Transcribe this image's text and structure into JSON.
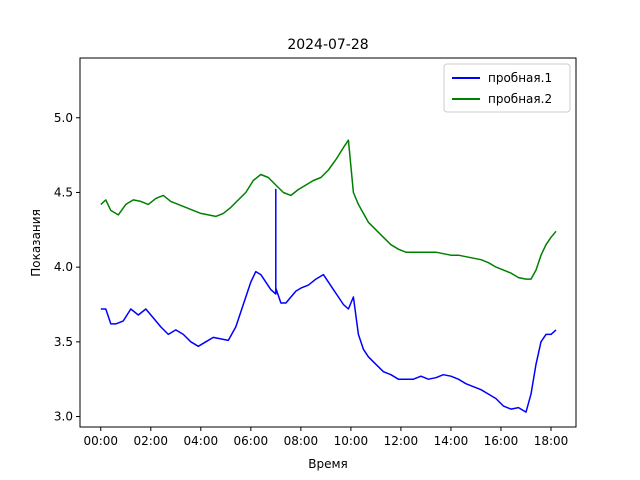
{
  "chart_data": {
    "type": "line",
    "title": "2024-07-28",
    "xlabel": "Время",
    "ylabel": "Показания",
    "x_unit": "hours",
    "xlim": [
      -0.83,
      19.0
    ],
    "ylim": [
      2.93,
      5.4
    ],
    "x_ticks": [
      0,
      2,
      4,
      6,
      8,
      10,
      12,
      14,
      16,
      18
    ],
    "x_tick_labels": [
      "00:00",
      "02:00",
      "04:00",
      "06:00",
      "08:00",
      "10:00",
      "12:00",
      "14:00",
      "16:00",
      "18:00"
    ],
    "y_ticks": [
      3.0,
      3.5,
      4.0,
      4.5,
      5.0
    ],
    "y_tick_labels": [
      "3.0",
      "3.5",
      "4.0",
      "4.5",
      "5.0"
    ],
    "legend_position": "top-right",
    "grid": false,
    "series": [
      {
        "name": "пробная.1",
        "color": "#0000ff",
        "x": [
          0,
          0.2,
          0.4,
          0.6,
          0.9,
          1.2,
          1.5,
          1.8,
          2.1,
          2.4,
          2.7,
          3.0,
          3.3,
          3.6,
          3.9,
          4.2,
          4.5,
          4.8,
          5.1,
          5.4,
          5.7,
          6.0,
          6.2,
          6.4,
          6.6,
          6.8,
          7.0,
          7.0,
          7.0,
          7.2,
          7.4,
          7.6,
          7.8,
          8.0,
          8.3,
          8.6,
          8.9,
          9.1,
          9.3,
          9.5,
          9.7,
          9.9,
          10.1,
          10.3,
          10.5,
          10.7,
          11.0,
          11.3,
          11.6,
          11.9,
          12.2,
          12.5,
          12.8,
          13.1,
          13.4,
          13.7,
          14.0,
          14.3,
          14.6,
          14.9,
          15.2,
          15.5,
          15.8,
          16.1,
          16.4,
          16.7,
          17.0,
          17.2,
          17.4,
          17.6,
          17.8,
          18.0,
          18.2
        ],
        "y": [
          3.72,
          3.72,
          3.62,
          3.62,
          3.64,
          3.72,
          3.68,
          3.72,
          3.66,
          3.6,
          3.55,
          3.58,
          3.55,
          3.5,
          3.47,
          3.5,
          3.53,
          3.52,
          3.51,
          3.6,
          3.75,
          3.9,
          3.97,
          3.95,
          3.9,
          3.85,
          3.82,
          4.52,
          3.86,
          3.76,
          3.76,
          3.8,
          3.84,
          3.86,
          3.88,
          3.92,
          3.95,
          3.9,
          3.85,
          3.8,
          3.75,
          3.72,
          3.8,
          3.55,
          3.45,
          3.4,
          3.35,
          3.3,
          3.28,
          3.25,
          3.25,
          3.25,
          3.27,
          3.25,
          3.26,
          3.28,
          3.27,
          3.25,
          3.22,
          3.2,
          3.18,
          3.15,
          3.12,
          3.07,
          3.05,
          3.06,
          3.03,
          3.15,
          3.35,
          3.5,
          3.55,
          3.55,
          3.58
        ]
      },
      {
        "name": "пробная.2",
        "color": "#008000",
        "x": [
          0,
          0.2,
          0.4,
          0.7,
          1.0,
          1.3,
          1.6,
          1.9,
          2.2,
          2.5,
          2.8,
          3.1,
          3.4,
          3.7,
          4.0,
          4.3,
          4.6,
          4.9,
          5.2,
          5.5,
          5.8,
          6.1,
          6.4,
          6.7,
          7.0,
          7.3,
          7.6,
          7.9,
          8.2,
          8.5,
          8.8,
          9.1,
          9.4,
          9.7,
          9.9,
          10.1,
          10.3,
          10.5,
          10.7,
          11.0,
          11.3,
          11.6,
          11.9,
          12.2,
          12.5,
          12.8,
          13.1,
          13.4,
          13.7,
          14.0,
          14.3,
          14.6,
          14.9,
          15.2,
          15.5,
          15.8,
          16.1,
          16.4,
          16.7,
          17.0,
          17.2,
          17.4,
          17.6,
          17.8,
          18.0,
          18.2
        ],
        "y": [
          4.42,
          4.45,
          4.38,
          4.35,
          4.42,
          4.45,
          4.44,
          4.42,
          4.46,
          4.48,
          4.44,
          4.42,
          4.4,
          4.38,
          4.36,
          4.35,
          4.34,
          4.36,
          4.4,
          4.45,
          4.5,
          4.58,
          4.62,
          4.6,
          4.55,
          4.5,
          4.48,
          4.52,
          4.55,
          4.58,
          4.6,
          4.65,
          4.72,
          4.8,
          4.85,
          4.5,
          4.42,
          4.36,
          4.3,
          4.25,
          4.2,
          4.15,
          4.12,
          4.1,
          4.1,
          4.1,
          4.1,
          4.1,
          4.09,
          4.08,
          4.08,
          4.07,
          4.06,
          4.05,
          4.03,
          4.0,
          3.98,
          3.96,
          3.93,
          3.92,
          3.92,
          3.98,
          4.08,
          4.15,
          4.2,
          4.24
        ]
      }
    ]
  }
}
